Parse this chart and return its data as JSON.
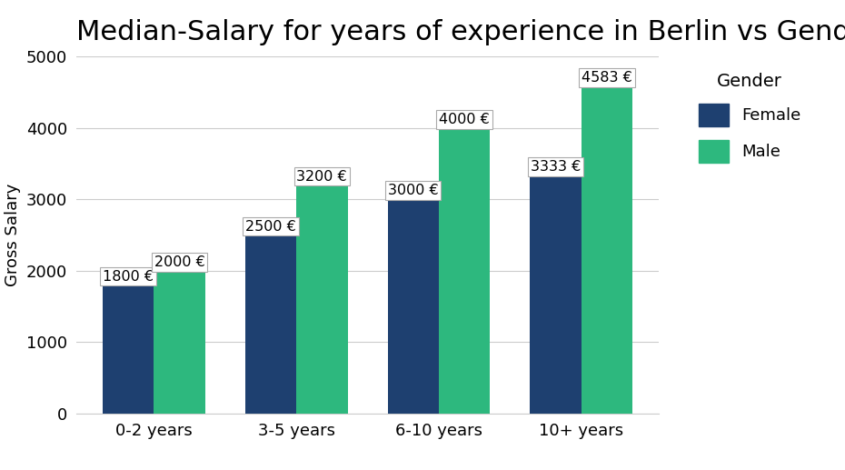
{
  "title": "Median-Salary for years of experience in Berlin vs Gender",
  "xlabel": "",
  "ylabel": "Gross Salary",
  "categories": [
    "0-2 years",
    "3-5 years",
    "6-10 years",
    "10+ years"
  ],
  "female_values": [
    1800,
    2500,
    3000,
    3333
  ],
  "male_values": [
    2000,
    3200,
    4000,
    4583
  ],
  "female_color": "#1e4070",
  "male_color": "#2db87e",
  "ylim": [
    0,
    5000
  ],
  "yticks": [
    0,
    1000,
    2000,
    3000,
    4000,
    5000
  ],
  "background_color": "#ffffff",
  "grid_color": "#cccccc",
  "title_fontsize": 22,
  "axis_label_fontsize": 13,
  "tick_fontsize": 13,
  "legend_title": "Gender",
  "legend_labels": [
    "Female",
    "Male"
  ],
  "bar_label_fontsize": 11.5,
  "bar_width": 0.36
}
